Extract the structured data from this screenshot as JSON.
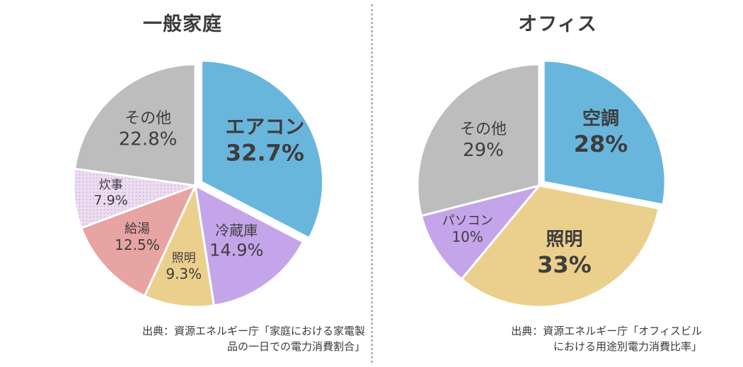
{
  "chart_data": [
    {
      "type": "pie",
      "title": "一般家庭",
      "slices": [
        {
          "label": "エアコン",
          "value": 32.7,
          "value_text": "32.7%",
          "color": "#69b6dd",
          "exploded": true
        },
        {
          "label": "冷蔵庫",
          "value": 14.9,
          "value_text": "14.9%",
          "color": "#c4a5ea"
        },
        {
          "label": "照明",
          "value": 9.3,
          "value_text": "9.3%",
          "color": "#ebcf8c"
        },
        {
          "label": "給湯",
          "value": 12.5,
          "value_text": "12.5%",
          "color": "#e8a3a3"
        },
        {
          "label": "炊事",
          "value": 7.9,
          "value_text": "7.9%",
          "color": "#ead7ee",
          "pattern": "dots"
        },
        {
          "label": "その他",
          "value": 22.8,
          "value_text": "22.8%",
          "color": "#bdbdbd"
        }
      ],
      "source": [
        "出典：資源エネルギー庁「家庭における家電製",
        "品の一日での電力消費割合」"
      ]
    },
    {
      "type": "pie",
      "title": "オフィス",
      "slices": [
        {
          "label": "空調",
          "value": 28,
          "value_text": "28%",
          "color": "#69b6dd",
          "exploded": true
        },
        {
          "label": "照明",
          "value": 33,
          "value_text": "33%",
          "color": "#ebcf8c"
        },
        {
          "label": "パソコン",
          "value": 10,
          "value_text": "10%",
          "color": "#c4a5ea"
        },
        {
          "label": "その他",
          "value": 29,
          "value_text": "29%",
          "color": "#bdbdbd"
        }
      ],
      "source": [
        "出典：資源エネルギー庁「オフィスビル",
        "における用途別電力消費比率」"
      ]
    }
  ]
}
